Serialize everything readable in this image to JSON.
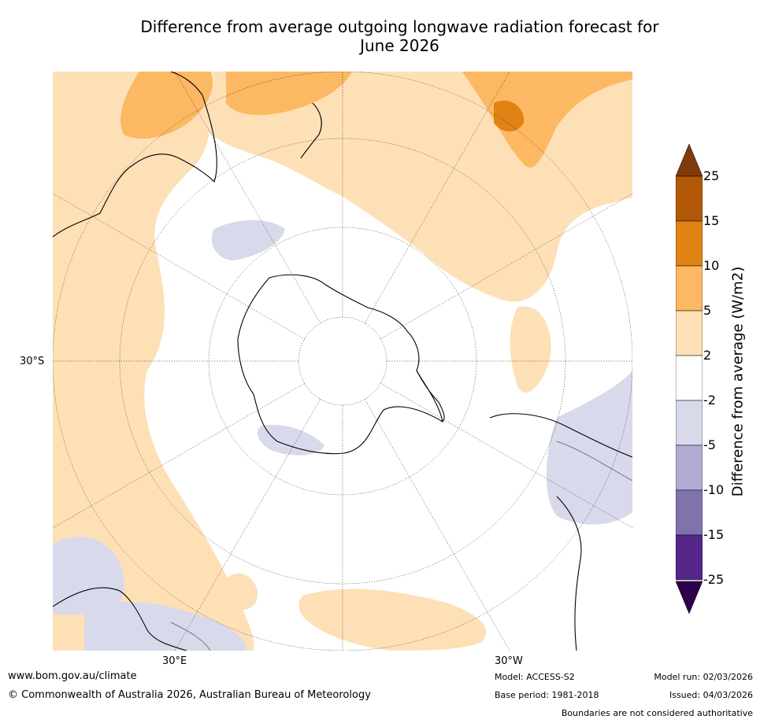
{
  "title": {
    "line1": "Difference from average outgoing longwave radiation forecast for",
    "line2": "June 2026"
  },
  "map": {
    "projection": "south-polar-stereographic",
    "labels": {
      "lat_30s": "30°S",
      "lon_30e": "30°E",
      "lon_30w": "30°W"
    }
  },
  "colorbar": {
    "title": "Difference from average (W/m2)",
    "ticks": [
      "25",
      "15",
      "10",
      "5",
      "2",
      "-2",
      "-5",
      "-10",
      "-15",
      "-25"
    ],
    "colors": {
      "over": "#7f3b08",
      "b15_25": "#b35806",
      "b10_15": "#e08214",
      "b5_10": "#fdb863",
      "b2_5": "#fee0b6",
      "neutral": "#ffffff",
      "bm5_m2": "#d8daeb",
      "bm10_m5": "#b2abd2",
      "bm15_m10": "#8073ac",
      "bm25_m15": "#542788",
      "under": "#2d004b"
    }
  },
  "footer": {
    "url": "www.bom.gov.au/climate",
    "copyright": "© Commonwealth of Australia 2026, Australian Bureau of Meteorology",
    "model": "Model: ACCESS-S2",
    "base_period": "Base period: 1981-2018",
    "model_run": "Model run: 02/03/2026",
    "issued": "Issued: 04/03/2026",
    "disclaimer": "Boundaries are not considered authoritative"
  }
}
